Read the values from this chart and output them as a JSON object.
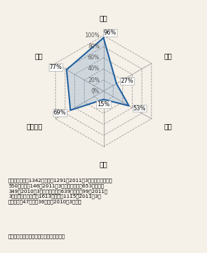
{
  "categories": [
    "洪水",
    "内水",
    "津波",
    "高潮",
    "土砂災害",
    "火山"
  ],
  "values": [
    96,
    27,
    53,
    15,
    69,
    77
  ],
  "value_labels": [
    "96%",
    "27%",
    "53%",
    "15%",
    "69%",
    "77%"
  ],
  "r_ticks": [
    0,
    20,
    40,
    60,
    80,
    100
  ],
  "r_tick_labels": [
    "0%",
    "20%",
    "40%",
    "60%",
    "80%",
    "100%"
  ],
  "line_color": "#2060a0",
  "fill_color": "#6090c0",
  "fill_alpha": 0.25,
  "grid_color": "#999999",
  "background_color": "#f5f0e8",
  "note_text": "（注）　洪水：1342市町村中1291（2011年3月末）、内水：約\n550市町村中146（2011年3月末）、津波：653市町村中\n349（2010年3月末）、高潮：639市町村中99（2011年\n3月末）、土砂災害：1613市町村中1115（2011年3月\n末）、火屑47火屑46火屑（2010年3月末）",
  "source_text": "資料）内閣府及び国土交通省資料より作成"
}
